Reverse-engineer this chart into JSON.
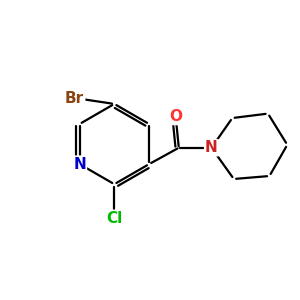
{
  "background_color": "#ffffff",
  "atom_colors": {
    "N_pyridine": "#0000cc",
    "N_piperidine": "#cc2222",
    "O": "#ff3333",
    "Br": "#8b4513",
    "Cl": "#00bb00"
  },
  "bond_color": "#000000",
  "figsize": [
    3.0,
    3.0
  ],
  "dpi": 100,
  "lw": 1.6,
  "fontsize": 11
}
